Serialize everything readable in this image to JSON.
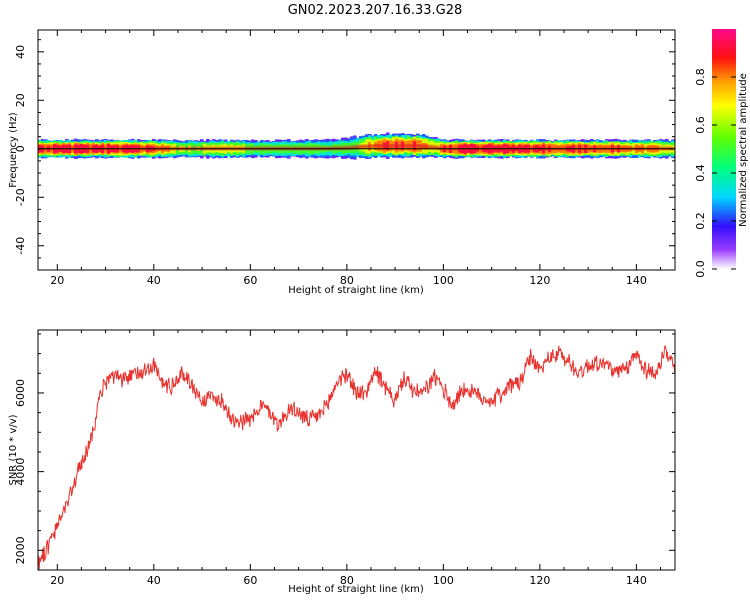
{
  "title": "GN02.2023.207.16.33.G28",
  "colors": {
    "snr_line": "#e8322d",
    "ridge": "#e02020",
    "frame": "#000000"
  },
  "chart_data": [
    {
      "type": "heatmap",
      "xlabel": "Height of straight line (km)",
      "ylabel": "Frequency (Hz)",
      "xlim": [
        16,
        148
      ],
      "ylim": [
        -50,
        49
      ],
      "x_ticks": [
        "20",
        "40",
        "60",
        "80",
        "100",
        "120",
        "140"
      ],
      "y_ticks": [
        "40",
        "20",
        "0",
        "-20",
        "-40"
      ],
      "x_tick_values": [
        20,
        40,
        60,
        80,
        100,
        120,
        140
      ],
      "y_tick_values": [
        40,
        20,
        0,
        -20,
        -40
      ],
      "colorbar": {
        "label": "Normalized spectral amplitude",
        "range": [
          0,
          1
        ],
        "ticks": [
          "0.0",
          "0.2",
          "0.4",
          "0.6",
          "0.8"
        ],
        "tick_values": [
          0.0,
          0.2,
          0.4,
          0.6,
          0.8
        ],
        "colormap": "rainbow (white-violet-blue-cyan-green-yellow-orange-red-magenta)"
      },
      "ridge": {
        "x": [
          16,
          20,
          25,
          30,
          35,
          40,
          45,
          50,
          55,
          60,
          65,
          70,
          75,
          80,
          83,
          86,
          90,
          95,
          98,
          100,
          105,
          110,
          115,
          120,
          125,
          130,
          135,
          140,
          145,
          148
        ],
        "frequency": [
          0,
          0,
          0,
          0,
          0,
          0,
          0,
          0,
          0,
          0,
          0,
          0,
          0,
          0.3,
          0.8,
          1.2,
          1.3,
          1.2,
          0.6,
          0,
          0,
          0,
          0,
          0,
          0,
          0,
          0,
          0,
          0,
          0
        ],
        "amplitude": [
          0.9,
          0.95,
          0.95,
          0.95,
          0.9,
          0.85,
          0.6,
          0.65,
          0.7,
          0.55,
          0.5,
          0.55,
          0.5,
          0.5,
          0.6,
          0.85,
          0.92,
          0.85,
          0.6,
          0.9,
          0.95,
          0.95,
          0.95,
          0.95,
          0.9,
          0.9,
          0.85,
          0.8,
          0.75,
          0.7
        ],
        "spread_hz": [
          3,
          3,
          3,
          3,
          3,
          3,
          3,
          3,
          3,
          3,
          3,
          3,
          3,
          3.5,
          4,
          4,
          4,
          4,
          3.5,
          3,
          3,
          3,
          3,
          3,
          3,
          3,
          3,
          3,
          3,
          3
        ]
      }
    },
    {
      "type": "line",
      "xlabel": "Height of straight line (km)",
      "ylabel": "SNR (10 * v/v)",
      "xlim": [
        16,
        148
      ],
      "ylim": [
        1500,
        7600
      ],
      "x_ticks": [
        "20",
        "40",
        "60",
        "80",
        "100",
        "120",
        "140"
      ],
      "y_ticks": [
        "2000",
        "4000",
        "6000"
      ],
      "x_tick_values": [
        20,
        40,
        60,
        80,
        100,
        120,
        140
      ],
      "y_tick_values": [
        2000,
        4000,
        6000
      ],
      "series": [
        {
          "x": [
            16,
            18,
            20,
            22,
            24,
            26,
            28,
            29,
            30,
            32,
            34,
            36,
            38,
            40,
            42,
            44,
            46,
            48,
            50,
            52,
            54,
            56,
            58,
            60,
            62,
            64,
            66,
            68,
            70,
            72,
            74,
            76,
            78,
            80,
            82,
            84,
            86,
            88,
            90,
            92,
            94,
            96,
            98,
            100,
            102,
            104,
            106,
            108,
            110,
            112,
            114,
            116,
            118,
            120,
            122,
            124,
            126,
            128,
            130,
            132,
            134,
            136,
            138,
            140,
            142,
            144,
            146,
            148
          ],
          "y": [
            1700,
            2100,
            2600,
            3200,
            3900,
            4500,
            5300,
            6000,
            6300,
            6400,
            6300,
            6500,
            6600,
            6700,
            6200,
            6200,
            6500,
            6200,
            5800,
            5900,
            5800,
            5400,
            5300,
            5300,
            5700,
            5500,
            5200,
            5600,
            5500,
            5300,
            5400,
            5700,
            6300,
            6500,
            6000,
            6000,
            6600,
            6100,
            5800,
            6400,
            6000,
            6000,
            6400,
            6100,
            5700,
            6100,
            6000,
            5900,
            5800,
            6000,
            6200,
            6300,
            6900,
            6600,
            6900,
            7000,
            6800,
            6500,
            6700,
            6800,
            6700,
            6500,
            6600,
            7000,
            6600,
            6500,
            7000,
            6700
          ]
        }
      ]
    }
  ]
}
